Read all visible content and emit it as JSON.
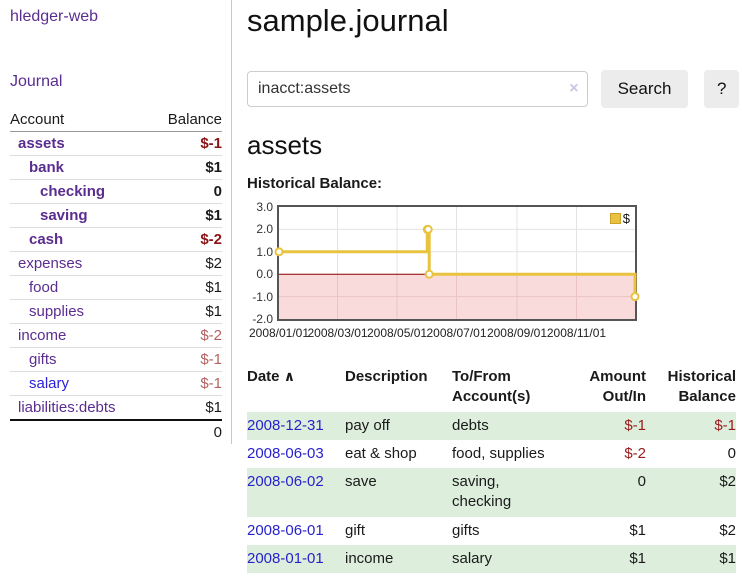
{
  "colors": {
    "link_purple": "#5b2d90",
    "link_blue": "#2b22d9",
    "date_link_blue": "#2822cc",
    "negative_bold_red": "#8b1313",
    "negative_muted_red": "#b2635f",
    "negative_table_red": "#9a1b1b",
    "row_green": "#ddeedd",
    "chart_line_gold": "#e9c33f",
    "chart_negative_region": "#fadbdb",
    "chart_zero_line": "#8b0000",
    "button_gray": "#ececec"
  },
  "sidebar": {
    "brand": "hledger-web",
    "journal_label": "Journal",
    "accounts_table": {
      "headers": [
        "Account",
        "Balance"
      ],
      "rows": [
        {
          "account": "assets",
          "balance": "$-1",
          "indent": 0,
          "bold": true,
          "negative": true
        },
        {
          "account": "bank",
          "balance": "$1",
          "indent": 1,
          "bold": true,
          "negative": false
        },
        {
          "account": "checking",
          "balance": "0",
          "indent": 2,
          "bold": true,
          "negative": false
        },
        {
          "account": "saving",
          "balance": "$1",
          "indent": 2,
          "bold": true,
          "negative": false
        },
        {
          "account": "cash",
          "balance": "$-2",
          "indent": 1,
          "bold": true,
          "negative": true
        },
        {
          "account": "expenses",
          "balance": "$2",
          "indent": 0,
          "bold": false,
          "negative": false
        },
        {
          "account": "food",
          "balance": "$1",
          "indent": 1,
          "bold": false,
          "negative": false
        },
        {
          "account": "supplies",
          "balance": "$1",
          "indent": 1,
          "bold": false,
          "negative": false
        },
        {
          "account": "income",
          "balance": "$-2",
          "indent": 0,
          "bold": false,
          "negative": true
        },
        {
          "account": "gifts",
          "balance": "$-1",
          "indent": 1,
          "bold": false,
          "negative": true
        },
        {
          "account": "salary",
          "balance": "$-1",
          "indent": 1,
          "bold": false,
          "negative": true,
          "blue": true
        },
        {
          "account": "liabilities:debts",
          "balance": "$1",
          "indent": 0,
          "bold": false,
          "negative": false
        }
      ],
      "total": "0"
    }
  },
  "header": {
    "title": "sample.journal"
  },
  "search": {
    "value": "inacct:assets",
    "clear_icon": "×",
    "button_label": "Search",
    "help_label": "?"
  },
  "account_page": {
    "title": "assets",
    "chart_label": "Historical Balance:"
  },
  "chart_data": {
    "type": "line",
    "step": true,
    "title": "Historical Balance",
    "x_range": [
      "2008-01-01",
      "2008-12-31"
    ],
    "ylim": [
      -2.0,
      3.0
    ],
    "yticks": [
      3.0,
      2.0,
      1.0,
      0.0,
      -1.0,
      -2.0
    ],
    "xtick_labels": [
      "2008/01/01",
      "2008/03/01",
      "2008/05/01",
      "2008/07/01",
      "2008/09/01",
      "2008/11/01"
    ],
    "grid": true,
    "legend_position": "top-right",
    "series": [
      {
        "name": "$",
        "color": "#e9c33f",
        "points": [
          {
            "date": "2008-01-01",
            "value": 1.0
          },
          {
            "date": "2008-06-01",
            "value": 2.0
          },
          {
            "date": "2008-06-02",
            "value": 2.0
          },
          {
            "date": "2008-06-03",
            "value": 0.0
          },
          {
            "date": "2008-12-31",
            "value": -1.0
          }
        ]
      }
    ]
  },
  "register_table": {
    "headers": [
      "Date",
      "Description",
      "To/From Account(s)",
      "Amount Out/In",
      "Historical Balance"
    ],
    "sort_icon": "∧",
    "rows": [
      {
        "date": "2008-12-31",
        "description": "pay off",
        "accounts": "debts",
        "amount": "$-1",
        "balance": "$-1",
        "amount_neg": true,
        "balance_neg": true,
        "green": true
      },
      {
        "date": "2008-06-03",
        "description": "eat & shop",
        "accounts": "food, supplies",
        "amount": "$-2",
        "balance": "0",
        "amount_neg": true,
        "balance_neg": false,
        "green": false
      },
      {
        "date": "2008-06-02",
        "description": "save",
        "accounts": "saving, checking",
        "amount": "0",
        "balance": "$2",
        "amount_neg": false,
        "balance_neg": false,
        "green": true
      },
      {
        "date": "2008-06-01",
        "description": "gift",
        "accounts": "gifts",
        "amount": "$1",
        "balance": "$2",
        "amount_neg": false,
        "balance_neg": false,
        "green": false
      },
      {
        "date": "2008-01-01",
        "description": "income",
        "accounts": "salary",
        "amount": "$1",
        "balance": "$1",
        "amount_neg": false,
        "balance_neg": false,
        "green": true
      }
    ]
  }
}
